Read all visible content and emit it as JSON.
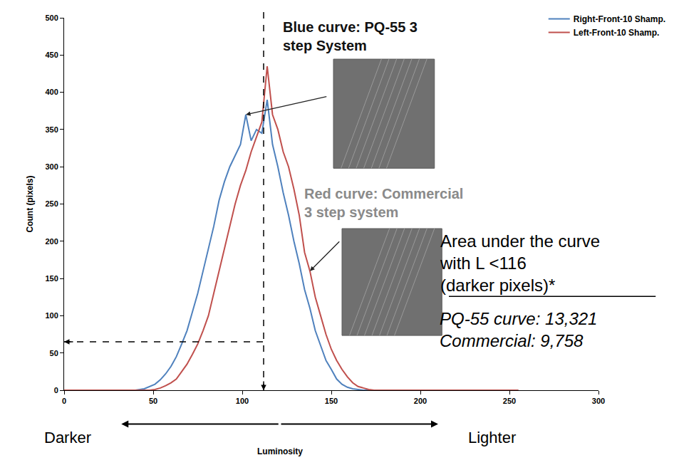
{
  "chart_data": {
    "type": "line",
    "x": [
      0,
      40,
      45,
      48,
      51,
      54,
      57,
      60,
      63,
      66,
      69,
      72,
      75,
      78,
      81,
      84,
      87,
      90,
      93,
      96,
      99,
      102,
      105,
      108,
      111,
      114,
      117,
      120,
      123,
      126,
      129,
      132,
      135,
      138,
      141,
      144,
      147,
      150,
      153,
      156,
      159,
      162,
      165,
      168,
      171,
      174,
      177,
      180,
      255
    ],
    "series": [
      {
        "name": "Right-Front-10 Shamp.",
        "color": "#4f81bd",
        "values": [
          0,
          0,
          2,
          5,
          8,
          14,
          22,
          32,
          45,
          62,
          80,
          105,
          130,
          160,
          190,
          220,
          255,
          280,
          300,
          315,
          330,
          370,
          335,
          350,
          345,
          390,
          330,
          300,
          265,
          235,
          200,
          170,
          135,
          110,
          80,
          60,
          40,
          28,
          15,
          8,
          4,
          2,
          1,
          0,
          0,
          0,
          0,
          0,
          0
        ]
      },
      {
        "name": "Left-Front-10 Shamp.",
        "color": "#c0504d",
        "values": [
          0,
          0,
          0,
          0,
          1,
          3,
          6,
          10,
          15,
          25,
          35,
          48,
          62,
          80,
          100,
          130,
          160,
          190,
          220,
          250,
          275,
          295,
          320,
          340,
          360,
          435,
          370,
          350,
          320,
          300,
          270,
          235,
          185,
          160,
          125,
          100,
          75,
          55,
          40,
          28,
          18,
          10,
          5,
          3,
          1,
          0,
          0,
          0,
          0
        ]
      }
    ],
    "xlim": [
      0,
      300
    ],
    "xticks": [
      0,
      50,
      100,
      150,
      200,
      250,
      300
    ],
    "ylim": [
      0,
      500
    ],
    "yticks": [
      0,
      50,
      100,
      150,
      200,
      250,
      300,
      350,
      400,
      450,
      500
    ],
    "x_label": "Luminosity",
    "y_label": "Count (pixels)",
    "grid": false,
    "legend": "top right",
    "x_end_labels": {
      "left": "Darker",
      "right": "Lighter"
    },
    "annotations": [
      {
        "text_lines": [
          "Blue curve: PQ-55 3",
          "step System"
        ],
        "points_to": [
          102,
          370
        ]
      },
      {
        "text_lines": [
          "Red curve: Commercial",
          "3 step system"
        ],
        "points_to": [
          138,
          160
        ]
      }
    ],
    "reference_lines": {
      "x": 112,
      "y": 65
    },
    "area_note": {
      "title_lines": [
        "Area under the curve",
        "with L <116",
        "(darker pixels)*"
      ],
      "lines": [
        "PQ-55 curve: 13,321",
        "Commercial: 9,758"
      ]
    }
  }
}
